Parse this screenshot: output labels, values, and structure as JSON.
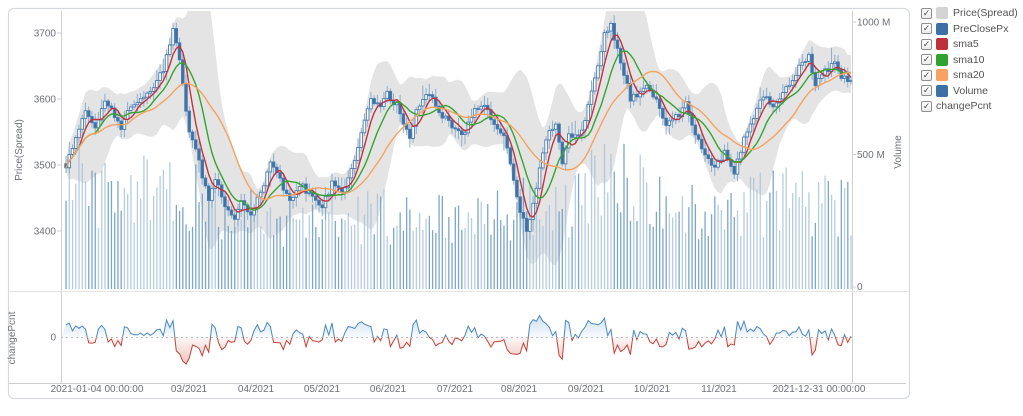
{
  "legend": {
    "items": [
      {
        "label": "Price(Spread)",
        "color": "#d4d4d4",
        "checked": true
      },
      {
        "label": "PreClosePx",
        "color": "#3d70a6",
        "checked": true
      },
      {
        "label": "sma5",
        "color": "#c0303a",
        "checked": true
      },
      {
        "label": "sma10",
        "color": "#2fa32e",
        "checked": true
      },
      {
        "label": "sma20",
        "color": "#f8a163",
        "checked": true
      },
      {
        "label": "Volume",
        "color": "#3d70a6",
        "checked": true
      },
      {
        "label": "changePcnt",
        "color": null,
        "checked": true
      }
    ]
  },
  "chart_data": {
    "type": "candlestick",
    "title": "",
    "trading_days": 243,
    "x_axis": {
      "start": "2021-01-04 00:00:00",
      "end": "2021-12-31 00:00:00",
      "tick_labels": [
        "2021-01-04 00:00:00",
        "03/2021",
        "04/2021",
        "05/2021",
        "06/2021",
        "07/2021",
        "08/2021",
        "09/2021",
        "10/2021",
        "11/2021",
        "2021-12-31 00:00:00"
      ]
    },
    "price_axis": {
      "label": "Price(Spread)",
      "ticks": [
        3400,
        3500,
        3600,
        3700
      ],
      "range": [
        3310,
        3733
      ]
    },
    "volume_axis": {
      "label": "Volume",
      "ticks": [
        "0",
        "500 M",
        "1000 M"
      ],
      "range_M": [
        0,
        1050
      ]
    },
    "change_axis": {
      "label": "changePcnt",
      "ticks": [
        "0"
      ],
      "approx_range_pct": [
        -1.9,
        1.6
      ]
    },
    "series": [
      {
        "name": "Price(Spread)",
        "type": "band",
        "color": "#c9c9c9"
      },
      {
        "name": "PreClosePx",
        "type": "candlestick",
        "color": "#4a7db1"
      },
      {
        "name": "sma5",
        "type": "line",
        "color": "#c1343c"
      },
      {
        "name": "sma10",
        "type": "line",
        "color": "#35a42f"
      },
      {
        "name": "sma20",
        "type": "line",
        "color": "#f6a25f"
      },
      {
        "name": "Volume",
        "type": "bar",
        "color": "#8fb2d0"
      },
      {
        "name": "changePcnt",
        "type": "area",
        "color_pos": "#4a88c0",
        "color_neg": "#c0443a"
      }
    ],
    "close_keypoints": [
      [
        0,
        3500
      ],
      [
        2,
        3528
      ],
      [
        4,
        3560
      ],
      [
        6,
        3582
      ],
      [
        9,
        3558
      ],
      [
        12,
        3598
      ],
      [
        15,
        3572
      ],
      [
        17,
        3552
      ],
      [
        20,
        3588
      ],
      [
        23,
        3600
      ],
      [
        26,
        3612
      ],
      [
        30,
        3645
      ],
      [
        33,
        3705
      ],
      [
        35,
        3655
      ],
      [
        38,
        3550
      ],
      [
        41,
        3505
      ],
      [
        44,
        3445
      ],
      [
        46,
        3478
      ],
      [
        49,
        3440
      ],
      [
        52,
        3418
      ],
      [
        54,
        3448
      ],
      [
        57,
        3425
      ],
      [
        60,
        3455
      ],
      [
        63,
        3505
      ],
      [
        66,
        3480
      ],
      [
        69,
        3440
      ],
      [
        72,
        3470
      ],
      [
        75,
        3455
      ],
      [
        79,
        3442
      ],
      [
        82,
        3470
      ],
      [
        85,
        3458
      ],
      [
        88,
        3487
      ],
      [
        91,
        3550
      ],
      [
        94,
        3600
      ],
      [
        97,
        3585
      ],
      [
        99,
        3610
      ],
      [
        102,
        3588
      ],
      [
        106,
        3542
      ],
      [
        109,
        3595
      ],
      [
        112,
        3608
      ],
      [
        115,
        3580
      ],
      [
        119,
        3560
      ],
      [
        122,
        3540
      ],
      [
        125,
        3575
      ],
      [
        129,
        3590
      ],
      [
        132,
        3560
      ],
      [
        135,
        3545
      ],
      [
        138,
        3480
      ],
      [
        140,
        3432
      ],
      [
        142,
        3400
      ],
      [
        145,
        3465
      ],
      [
        148,
        3545
      ],
      [
        151,
        3560
      ],
      [
        153,
        3502
      ],
      [
        155,
        3545
      ],
      [
        158,
        3540
      ],
      [
        160,
        3565
      ],
      [
        163,
        3630
      ],
      [
        166,
        3700
      ],
      [
        168,
        3715
      ],
      [
        171,
        3650
      ],
      [
        174,
        3600
      ],
      [
        176,
        3605
      ],
      [
        179,
        3620
      ],
      [
        182,
        3600
      ],
      [
        185,
        3565
      ],
      [
        188,
        3570
      ],
      [
        191,
        3592
      ],
      [
        194,
        3545
      ],
      [
        197,
        3512
      ],
      [
        200,
        3500
      ],
      [
        203,
        3515
      ],
      [
        206,
        3485
      ],
      [
        209,
        3540
      ],
      [
        212,
        3575
      ],
      [
        215,
        3605
      ],
      [
        218,
        3588
      ],
      [
        220,
        3600
      ],
      [
        223,
        3625
      ],
      [
        226,
        3650
      ],
      [
        229,
        3665
      ],
      [
        231,
        3620
      ],
      [
        234,
        3642
      ],
      [
        237,
        3655
      ],
      [
        239,
        3628
      ],
      [
        242,
        3630
      ]
    ],
    "volume_keypoints_M": [
      [
        0,
        390
      ],
      [
        6,
        420
      ],
      [
        12,
        380
      ],
      [
        20,
        360
      ],
      [
        30,
        390
      ],
      [
        35,
        400
      ],
      [
        40,
        360
      ],
      [
        46,
        330
      ],
      [
        52,
        310
      ],
      [
        58,
        290
      ],
      [
        65,
        280
      ],
      [
        72,
        265
      ],
      [
        79,
        260
      ],
      [
        88,
        275
      ],
      [
        94,
        310
      ],
      [
        100,
        290
      ],
      [
        106,
        275
      ],
      [
        112,
        270
      ],
      [
        119,
        265
      ],
      [
        126,
        260
      ],
      [
        132,
        275
      ],
      [
        138,
        300
      ],
      [
        142,
        330
      ],
      [
        148,
        310
      ],
      [
        153,
        300
      ],
      [
        158,
        320
      ],
      [
        161,
        360
      ],
      [
        164,
        430
      ],
      [
        166,
        485
      ],
      [
        169,
        460
      ],
      [
        172,
        420
      ],
      [
        176,
        380
      ],
      [
        180,
        355
      ],
      [
        185,
        335
      ],
      [
        190,
        320
      ],
      [
        196,
        300
      ],
      [
        202,
        285
      ],
      [
        208,
        300
      ],
      [
        213,
        320
      ],
      [
        218,
        330
      ],
      [
        224,
        340
      ],
      [
        230,
        325
      ],
      [
        235,
        335
      ],
      [
        240,
        310
      ],
      [
        242,
        300
      ]
    ]
  }
}
